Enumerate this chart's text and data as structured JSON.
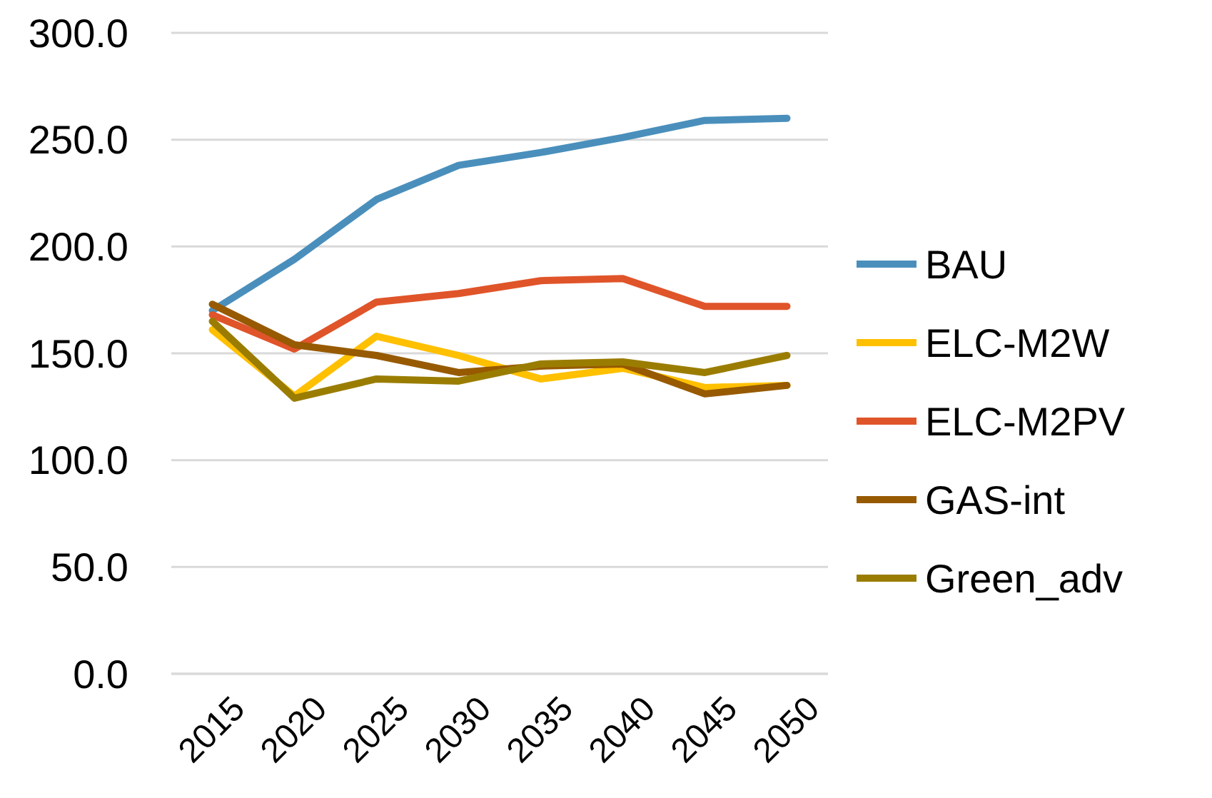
{
  "chart_data": {
    "type": "line",
    "categories": [
      "2015",
      "2020",
      "2025",
      "2030",
      "2035",
      "2040",
      "2045",
      "2050"
    ],
    "series": [
      {
        "name": "BAU",
        "color": "#4a8fbc",
        "values": [
          170,
          194,
          222,
          238,
          244,
          251,
          259,
          260
        ]
      },
      {
        "name": "ELC-M2W",
        "color": "#ffc000",
        "values": [
          161,
          130,
          158,
          149,
          138,
          143,
          134,
          135
        ]
      },
      {
        "name": "ELC-M2PV",
        "color": "#e0542a",
        "values": [
          168,
          152,
          174,
          178,
          184,
          185,
          172,
          172
        ]
      },
      {
        "name": "GAS-int",
        "color": "#975a00",
        "values": [
          173,
          154,
          149,
          141,
          144,
          145,
          131,
          135
        ]
      },
      {
        "name": "Green_adv",
        "color": "#9a7d00",
        "values": [
          165,
          129,
          138,
          137,
          145,
          146,
          141,
          149
        ]
      }
    ],
    "ylim": [
      0,
      300
    ],
    "yticks": [
      {
        "value": 0,
        "label": "0.0"
      },
      {
        "value": 50,
        "label": "50.0"
      },
      {
        "value": 100,
        "label": "100.0"
      },
      {
        "value": 150,
        "label": "150.0"
      },
      {
        "value": 200,
        "label": "200.0"
      },
      {
        "value": 250,
        "label": "250.0"
      },
      {
        "value": 300,
        "label": "300.0"
      }
    ],
    "grid": "y",
    "legend": "right",
    "marker": "none",
    "line_style": "solid"
  }
}
